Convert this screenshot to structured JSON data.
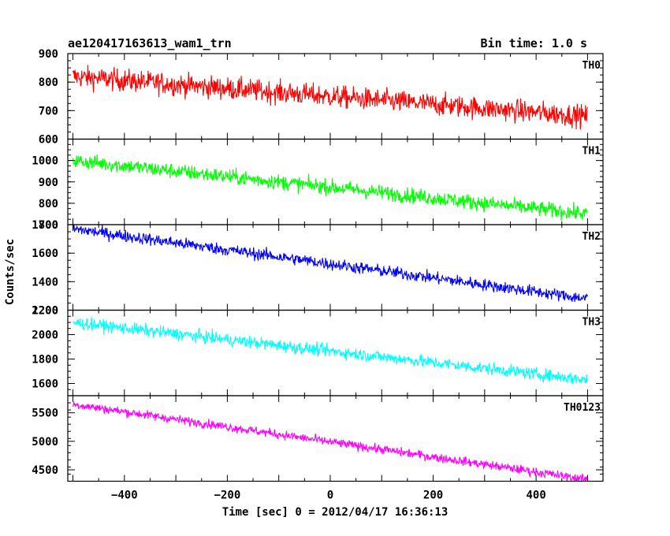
{
  "header": {
    "title": "ae120417163613_wam1_trn",
    "bin_time": "Bin time: 1.0 s"
  },
  "axes": {
    "xlabel": "Time [sec] 0 = 2012/04/17 16:36:13",
    "ylabel": "Counts/sec"
  },
  "chart_data": {
    "type": "line",
    "x": {
      "range": [
        -510,
        530
      ],
      "ticks": [
        -400,
        -200,
        0,
        200,
        400
      ],
      "tick_labels": [
        "−400",
        "−200",
        "0",
        "200",
        "400"
      ],
      "data_range": [
        -500,
        500
      ]
    },
    "series": [
      {
        "name": "TH0",
        "color": "#ff0000",
        "ylim": [
          600,
          900
        ],
        "yticks": [
          600,
          700,
          800,
          900
        ],
        "trend": [
          820,
          680
        ],
        "noise": 35
      },
      {
        "name": "TH1",
        "color": "#00ff00",
        "ylim": [
          700,
          1100
        ],
        "yticks": [
          700,
          800,
          900,
          1000
        ],
        "trend": [
          1000,
          750
        ],
        "noise": 32
      },
      {
        "name": "TH2",
        "color": "#0000ff",
        "ylim": [
          1200,
          1800
        ],
        "yticks": [
          1200,
          1400,
          1600,
          1800
        ],
        "trend": [
          1770,
          1280
        ],
        "noise": 38
      },
      {
        "name": "TH3",
        "color": "#00ffff",
        "ylim": [
          1500,
          2200
        ],
        "yticks": [
          1600,
          1800,
          2000,
          2200
        ],
        "trend": [
          2100,
          1630
        ],
        "noise": 45
      },
      {
        "name": "TH0123",
        "color": "#ff00ff",
        "ylim": [
          4300,
          5800
        ],
        "yticks": [
          4500,
          5000,
          5500
        ],
        "trend": [
          5650,
          4330
        ],
        "noise": 70
      }
    ]
  }
}
